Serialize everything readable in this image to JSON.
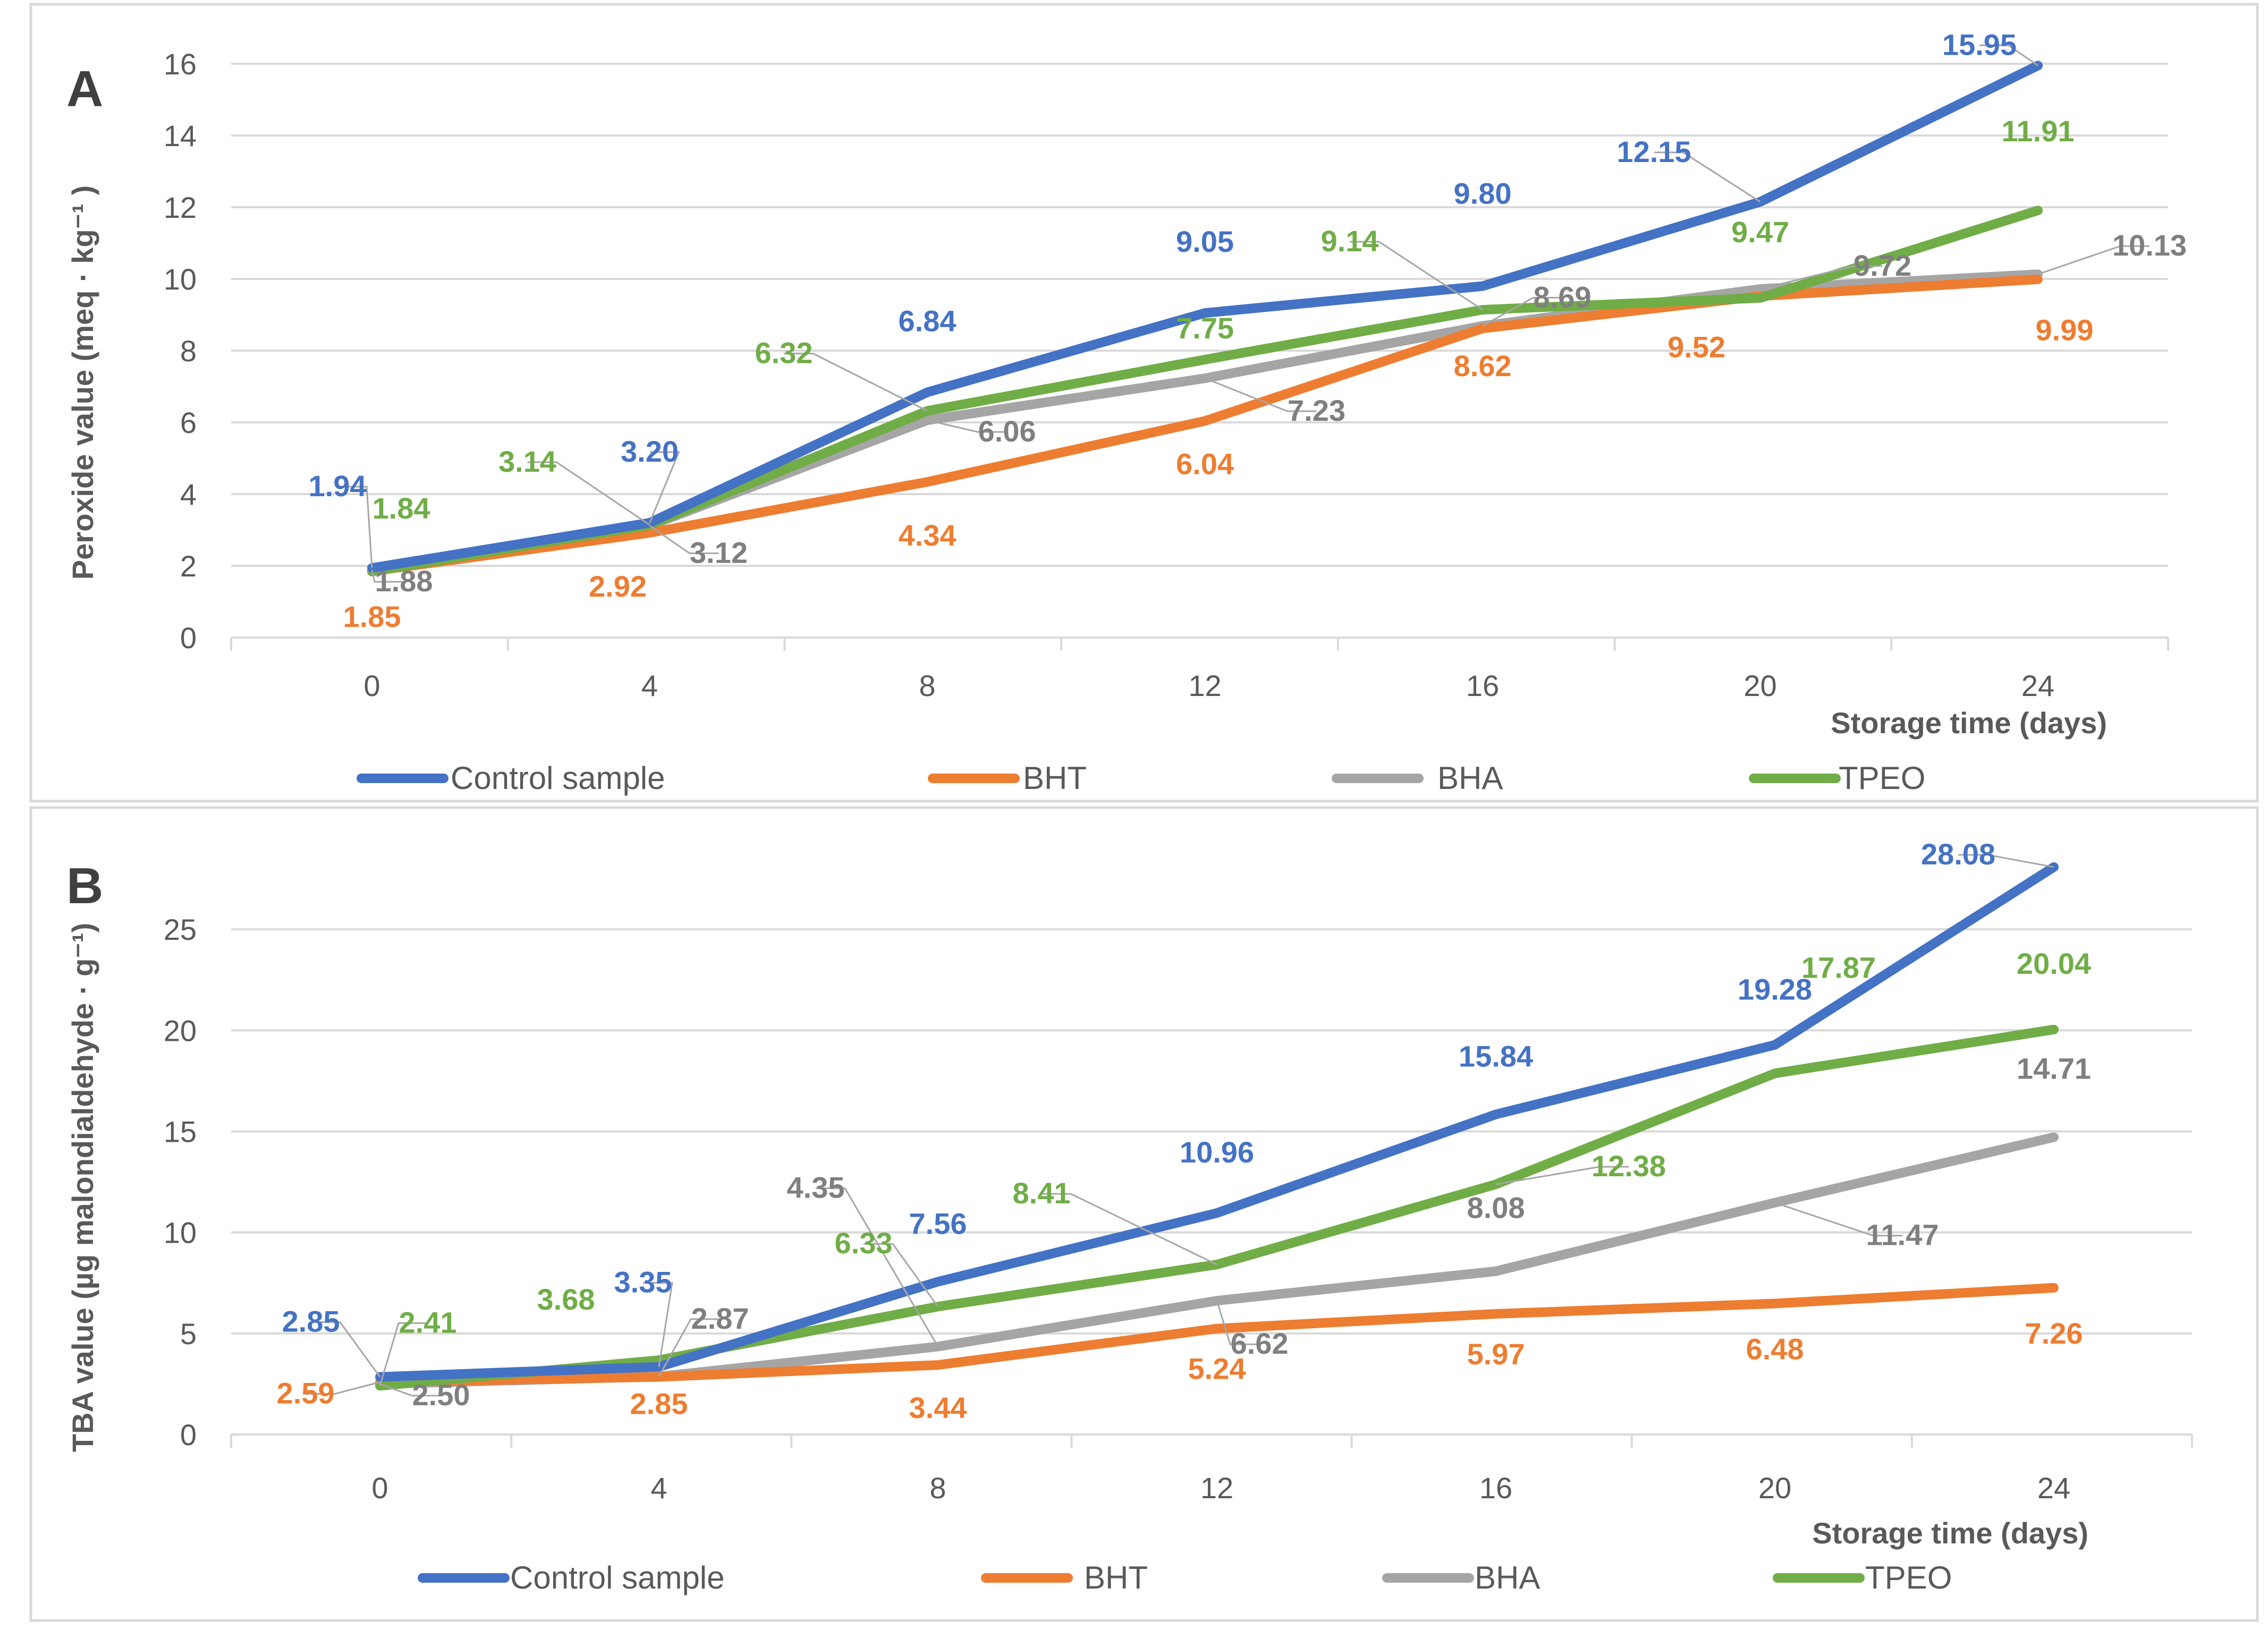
{
  "chart_data": [
    {
      "type": "line",
      "panel_label": "A",
      "categories": [
        "0",
        "4",
        "8",
        "12",
        "16",
        "20",
        "24"
      ],
      "xlabel": "Storage time (days)",
      "ylabel": "Peroxide value (meq · kg⁻¹ )",
      "ylim": [
        0,
        16
      ],
      "yticks": [
        "0",
        "2",
        "4",
        "6",
        "8",
        "10",
        "12",
        "14",
        "16"
      ],
      "grid": true,
      "legend_position": "bottom",
      "series": [
        {
          "name": "Control sample",
          "color": "#4472c4",
          "values": [
            1.94,
            3.2,
            6.84,
            9.05,
            9.8,
            12.15,
            15.95
          ],
          "labels": [
            "1.94",
            "3.20",
            "6.84",
            "9.05",
            "9.80",
            "12.15",
            "15.95"
          ]
        },
        {
          "name": "BHT",
          "color": "#ed7d31",
          "values": [
            1.85,
            2.92,
            4.34,
            6.04,
            8.62,
            9.52,
            9.99
          ],
          "labels": [
            "1.85",
            "2.92",
            "4.34",
            "6.04",
            "8.62",
            "9.52",
            "9.99"
          ]
        },
        {
          "name": "BHA",
          "color": "#a5a5a5",
          "values": [
            1.88,
            3.12,
            6.06,
            7.23,
            8.69,
            9.72,
            10.13
          ],
          "labels": [
            "1.88",
            "3.12",
            "6.06",
            "7.23",
            "8.69",
            "9.72",
            "10.13"
          ]
        },
        {
          "name": "TPEO",
          "color": "#70ad47",
          "values": [
            1.84,
            3.14,
            6.32,
            7.75,
            9.14,
            9.47,
            11.91
          ],
          "labels": [
            "1.84",
            "3.14",
            "6.32",
            "7.75",
            "9.14",
            "9.47",
            "11.91"
          ]
        }
      ]
    },
    {
      "type": "line",
      "panel_label": "B",
      "categories": [
        "0",
        "4",
        "8",
        "12",
        "16",
        "20",
        "24"
      ],
      "xlabel": "Storage time (days)",
      "ylabel": "TBA value (µg malondialdehyde · g⁻¹)",
      "ylim": [
        0,
        28
      ],
      "yticks": [
        "0",
        "5",
        "10",
        "15",
        "20",
        "25"
      ],
      "grid": true,
      "legend_position": "bottom",
      "series": [
        {
          "name": "Control sample",
          "color": "#4472c4",
          "values": [
            2.85,
            3.35,
            7.56,
            10.96,
            15.84,
            19.28,
            28.08
          ],
          "labels": [
            "2.85",
            "3.35",
            "7.56",
            "10.96",
            "15.84",
            "19.28",
            "28.08"
          ]
        },
        {
          "name": "BHT",
          "color": "#ed7d31",
          "values": [
            2.59,
            2.85,
            3.44,
            5.24,
            5.97,
            6.48,
            7.26
          ],
          "labels": [
            "2.59",
            "2.85",
            "3.44",
            "5.24",
            "5.97",
            "6.48",
            "7.26"
          ]
        },
        {
          "name": "BHA",
          "color": "#a5a5a5",
          "values": [
            2.5,
            2.87,
            4.35,
            6.62,
            8.08,
            11.47,
            14.71
          ],
          "labels": [
            "2.50",
            "2.87",
            "4.35",
            "6.62",
            "8.08",
            "11.47",
            "14.71"
          ]
        },
        {
          "name": "TPEO",
          "color": "#70ad47",
          "values": [
            2.41,
            3.68,
            6.33,
            8.41,
            12.38,
            17.87,
            20.04
          ],
          "labels": [
            "2.41",
            "3.68",
            "6.33",
            "8.41",
            "12.38",
            "17.87",
            "20.04"
          ]
        }
      ]
    }
  ]
}
